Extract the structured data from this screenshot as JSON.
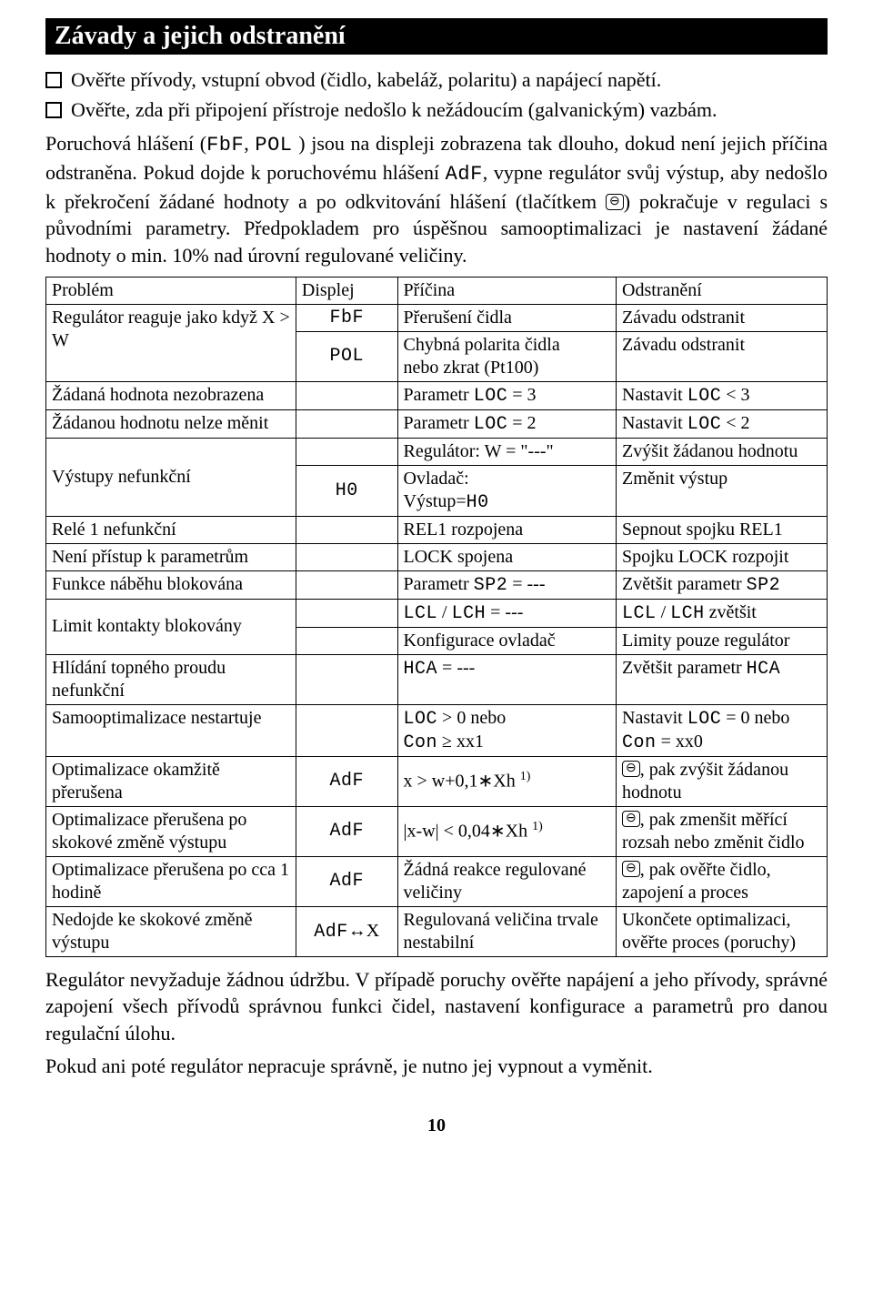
{
  "title": "Závady a jejich odstranění",
  "bullets": [
    "Ověřte přívody, vstupní obvod (čidlo, kabeláž, polaritu) a napájecí napětí.",
    "Ověřte, zda při připojení přístroje nedošlo k nežádoucím (galvanickým) vazbám."
  ],
  "intro": {
    "pre": "Poruchová hlášení (",
    "code1": "FbF",
    "mid1": ", ",
    "code2": "POL",
    "mid2": " ) jsou na displeji zobrazena tak dlouho, dokud není jejich příčina odstraněna. Pokud dojde k poruchovému hlášení ",
    "code3": "AdF",
    "mid3": ", vypne regulátor svůj výstup, aby nedošlo k překročení žádané hodnoty a po odkvitování hlášení (tlačítkem ",
    "icon": "⊖",
    "mid4": ") pokračuje v regulaci s původními parametry. Předpokladem pro úspěšnou samooptimalizaci je nastavení žádané hodnoty o min. 10% nad úrovní regulované veličiny."
  },
  "headers": {
    "problem": "Problém",
    "display": "Displej",
    "cause": "Příčina",
    "fix": "Odstranění"
  },
  "rows": {
    "r1": {
      "problem": "Regulátor reaguje jako když X > W",
      "disp1": "FbF",
      "cause1": "Přerušení čidla",
      "fix1": "Závadu odstranit",
      "disp2": "POL",
      "cause2a": "Chybná polarita čidla",
      "cause2b": "nebo zkrat (Pt100)",
      "fix2": "Závadu odstranit"
    },
    "r2": {
      "problem": "Žádaná hodnota nezobrazena",
      "disp": "",
      "cause_pre": "Parametr ",
      "cause_code": "LOC",
      "cause_post": " = 3",
      "fix_pre": "Nastavit ",
      "fix_code": "LOC",
      "fix_post": " < 3"
    },
    "r3": {
      "problem": "Žádanou hodnotu nelze měnit",
      "disp": "",
      "cause_pre": "Parametr ",
      "cause_code": "LOC",
      "cause_post": " = 2",
      "fix_pre": "Nastavit ",
      "fix_code": "LOC",
      "fix_post": " < 2"
    },
    "r4": {
      "problem": "Výstupy nefunkční",
      "disp": "",
      "cause_top": "Regulátor: W = \"---\"",
      "fix_top": "Zvýšit žádanou hodnotu",
      "disp_bot": "H0",
      "cause_bot_pre": "Ovladač:",
      "cause_bot_line2_pre": "Výstup=",
      "cause_bot_code": "H0",
      "fix_bot": "Změnit výstup"
    },
    "r5": {
      "problem": "Relé 1 nefunkční",
      "cause": "REL1 rozpojena",
      "fix": "Sepnout spojku REL1"
    },
    "r6": {
      "problem": "Není přístup k parametrům",
      "cause": "LOCK spojena",
      "fix": "Spojku LOCK rozpojit"
    },
    "r7": {
      "problem": "Funkce náběhu blokována",
      "cause_pre": "Parametr ",
      "cause_code": "SP2",
      "cause_post": " = ---",
      "fix_pre": "Zvětšit parametr ",
      "fix_code": "SP2"
    },
    "r8": {
      "problem": "Limit kontakty blokovány",
      "cause1_code1": "LCL",
      "cause1_mid": " / ",
      "cause1_code2": "LCH",
      "cause1_post": " = ---",
      "fix1_code1": "LCL",
      "fix1_mid": " / ",
      "fix1_code2": "LCH",
      "fix1_post": " zvětšit",
      "cause2": "Konfigurace ovladač",
      "fix2": "Limity pouze regulátor"
    },
    "r9": {
      "problem": "Hlídání topného proudu nefunkční",
      "cause_code": "HCA",
      "cause_post": " = ---",
      "fix_pre": "Zvětšit parametr ",
      "fix_code": "HCA"
    },
    "r10": {
      "problem": "Samooptimalizace nestartuje",
      "cause_l1_code": "LOC",
      "cause_l1_post": " > 0 nebo",
      "cause_l2_code": "Con",
      "cause_l2_post": " ≥ xx1",
      "fix_l1_pre": "Nastavit ",
      "fix_l1_code": "LOC",
      "fix_l1_post": " = 0  nebo",
      "fix_l2_code": "Con",
      "fix_l2_post": " = xx0"
    },
    "r11": {
      "problem": "Optimalizace okamžitě přerušena",
      "disp": "AdF",
      "cause": "x > w+0,1∗Xh ",
      "sup": "1)",
      "fix": ", pak zvýšit žádanou hodnotu",
      "icon": "⊖"
    },
    "r12": {
      "problem": "Optimalizace přerušena po skokové změně výstupu",
      "disp": "AdF",
      "cause": "|x-w| < 0,04∗Xh ",
      "sup": "1)",
      "fix": ", pak zmenšit měřící rozsah nebo změnit čidlo",
      "icon": "⊖"
    },
    "r13": {
      "problem": "Optimalizace přerušena po cca 1 hodině",
      "disp": "AdF",
      "cause": "Žádná reakce regulované veličiny",
      "fix": ", pak ověřte čidlo, zapojení a proces",
      "icon": "⊖"
    },
    "r14": {
      "problem": "Nedojde ke skokové změně výstupu",
      "disp_code": "AdF",
      "disp_post": "↔X",
      "cause": "Regulovaná veličina trvale nestabilní",
      "fix": "Ukončete optimalizaci, ověřte proces (poruchy)"
    }
  },
  "outro": {
    "p1": "Regulátor nevyžaduje žádnou údržbu. V případě poruchy ověřte napájení a jeho přívody, správné zapojení všech přívodů správnou funkci čidel, nastavení konfigurace a parametrů pro danou regulační úlohu.",
    "p2": "Pokud ani poté regulátor nepracuje správně, je nutno jej vypnout a vyměnit."
  },
  "page_number": "10"
}
